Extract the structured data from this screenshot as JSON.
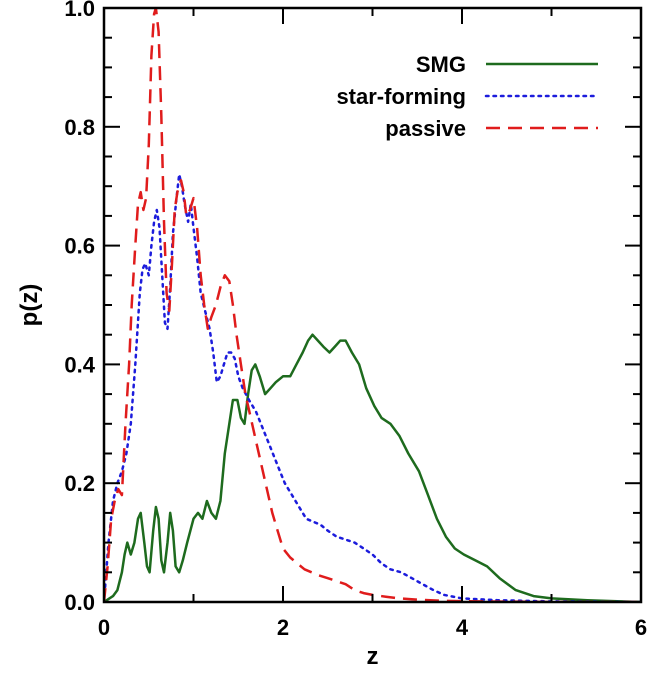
{
  "chart_data": {
    "type": "line",
    "xlabel": "z",
    "ylabel": "p(z)",
    "xlim": [
      0,
      6
    ],
    "ylim": [
      0,
      1.0
    ],
    "x_ticks": [
      {
        "value": 0,
        "label": "0"
      },
      {
        "value": 2,
        "label": "2"
      },
      {
        "value": 4,
        "label": "4"
      },
      {
        "value": 6,
        "label": "6"
      }
    ],
    "y_ticks": [
      {
        "value": 0.0,
        "label": "0.0"
      },
      {
        "value": 0.2,
        "label": "0.2"
      },
      {
        "value": 0.4,
        "label": "0.4"
      },
      {
        "value": 0.6,
        "label": "0.6"
      },
      {
        "value": 0.8,
        "label": "0.8"
      },
      {
        "value": 1.0,
        "label": "1.0"
      }
    ],
    "grid": false,
    "legend_position": "top-right",
    "series": [
      {
        "name": "SMG",
        "color": "#1e6b1e",
        "style": "solid",
        "points": [
          [
            0.0,
            0.0
          ],
          [
            0.1,
            0.01
          ],
          [
            0.15,
            0.02
          ],
          [
            0.2,
            0.05
          ],
          [
            0.23,
            0.08
          ],
          [
            0.26,
            0.1
          ],
          [
            0.3,
            0.08
          ],
          [
            0.34,
            0.1
          ],
          [
            0.38,
            0.14
          ],
          [
            0.41,
            0.15
          ],
          [
            0.45,
            0.1
          ],
          [
            0.48,
            0.06
          ],
          [
            0.51,
            0.05
          ],
          [
            0.55,
            0.12
          ],
          [
            0.58,
            0.16
          ],
          [
            0.61,
            0.14
          ],
          [
            0.64,
            0.07
          ],
          [
            0.67,
            0.05
          ],
          [
            0.71,
            0.1
          ],
          [
            0.74,
            0.15
          ],
          [
            0.77,
            0.12
          ],
          [
            0.8,
            0.06
          ],
          [
            0.84,
            0.05
          ],
          [
            0.88,
            0.07
          ],
          [
            0.93,
            0.1
          ],
          [
            1.0,
            0.14
          ],
          [
            1.05,
            0.15
          ],
          [
            1.1,
            0.14
          ],
          [
            1.15,
            0.17
          ],
          [
            1.2,
            0.15
          ],
          [
            1.25,
            0.14
          ],
          [
            1.3,
            0.17
          ],
          [
            1.35,
            0.25
          ],
          [
            1.4,
            0.3
          ],
          [
            1.44,
            0.34
          ],
          [
            1.49,
            0.34
          ],
          [
            1.53,
            0.31
          ],
          [
            1.57,
            0.3
          ],
          [
            1.61,
            0.35
          ],
          [
            1.65,
            0.39
          ],
          [
            1.69,
            0.4
          ],
          [
            1.74,
            0.38
          ],
          [
            1.8,
            0.35
          ],
          [
            1.86,
            0.36
          ],
          [
            1.92,
            0.37
          ],
          [
            2.0,
            0.38
          ],
          [
            2.08,
            0.38
          ],
          [
            2.15,
            0.4
          ],
          [
            2.22,
            0.42
          ],
          [
            2.28,
            0.44
          ],
          [
            2.33,
            0.45
          ],
          [
            2.39,
            0.44
          ],
          [
            2.45,
            0.43
          ],
          [
            2.52,
            0.42
          ],
          [
            2.58,
            0.43
          ],
          [
            2.64,
            0.44
          ],
          [
            2.7,
            0.44
          ],
          [
            2.77,
            0.42
          ],
          [
            2.85,
            0.4
          ],
          [
            2.93,
            0.36
          ],
          [
            3.02,
            0.33
          ],
          [
            3.1,
            0.31
          ],
          [
            3.2,
            0.3
          ],
          [
            3.3,
            0.28
          ],
          [
            3.4,
            0.25
          ],
          [
            3.52,
            0.22
          ],
          [
            3.62,
            0.18
          ],
          [
            3.72,
            0.14
          ],
          [
            3.82,
            0.11
          ],
          [
            3.92,
            0.09
          ],
          [
            4.02,
            0.08
          ],
          [
            4.15,
            0.07
          ],
          [
            4.28,
            0.06
          ],
          [
            4.42,
            0.04
          ],
          [
            4.6,
            0.02
          ],
          [
            4.8,
            0.01
          ],
          [
            5.0,
            0.006
          ],
          [
            5.4,
            0.003
          ],
          [
            6.0,
            0.0
          ]
        ]
      },
      {
        "name": "star-forming",
        "color": "#1c1cdc",
        "style": "dotted",
        "points": [
          [
            0.0,
            0.0
          ],
          [
            0.05,
            0.1
          ],
          [
            0.1,
            0.17
          ],
          [
            0.15,
            0.2
          ],
          [
            0.2,
            0.22
          ],
          [
            0.25,
            0.25
          ],
          [
            0.3,
            0.3
          ],
          [
            0.35,
            0.4
          ],
          [
            0.4,
            0.52
          ],
          [
            0.43,
            0.56
          ],
          [
            0.46,
            0.57
          ],
          [
            0.5,
            0.55
          ],
          [
            0.53,
            0.6
          ],
          [
            0.56,
            0.64
          ],
          [
            0.59,
            0.66
          ],
          [
            0.62,
            0.63
          ],
          [
            0.65,
            0.55
          ],
          [
            0.68,
            0.47
          ],
          [
            0.71,
            0.46
          ],
          [
            0.74,
            0.53
          ],
          [
            0.77,
            0.62
          ],
          [
            0.81,
            0.68
          ],
          [
            0.84,
            0.72
          ],
          [
            0.87,
            0.7
          ],
          [
            0.9,
            0.67
          ],
          [
            0.94,
            0.64
          ],
          [
            0.97,
            0.67
          ],
          [
            1.0,
            0.63
          ],
          [
            1.04,
            0.58
          ],
          [
            1.08,
            0.52
          ],
          [
            1.13,
            0.49
          ],
          [
            1.18,
            0.46
          ],
          [
            1.22,
            0.42
          ],
          [
            1.26,
            0.37
          ],
          [
            1.3,
            0.38
          ],
          [
            1.34,
            0.4
          ],
          [
            1.38,
            0.42
          ],
          [
            1.42,
            0.42
          ],
          [
            1.46,
            0.41
          ],
          [
            1.5,
            0.38
          ],
          [
            1.55,
            0.36
          ],
          [
            1.62,
            0.34
          ],
          [
            1.7,
            0.32
          ],
          [
            1.78,
            0.29
          ],
          [
            1.86,
            0.26
          ],
          [
            1.94,
            0.23
          ],
          [
            2.02,
            0.2
          ],
          [
            2.1,
            0.18
          ],
          [
            2.18,
            0.16
          ],
          [
            2.26,
            0.14
          ],
          [
            2.34,
            0.135
          ],
          [
            2.42,
            0.13
          ],
          [
            2.5,
            0.12
          ],
          [
            2.6,
            0.11
          ],
          [
            2.7,
            0.105
          ],
          [
            2.8,
            0.1
          ],
          [
            2.9,
            0.09
          ],
          [
            3.0,
            0.08
          ],
          [
            3.1,
            0.065
          ],
          [
            3.2,
            0.055
          ],
          [
            3.32,
            0.05
          ],
          [
            3.44,
            0.04
          ],
          [
            3.56,
            0.03
          ],
          [
            3.68,
            0.02
          ],
          [
            3.8,
            0.012
          ],
          [
            4.0,
            0.006
          ],
          [
            4.4,
            0.003
          ],
          [
            5.0,
            0.001
          ],
          [
            6.0,
            0.0
          ]
        ]
      },
      {
        "name": "passive",
        "color": "#e01c1c",
        "style": "dashed",
        "points": [
          [
            0.0,
            0.0
          ],
          [
            0.04,
            0.06
          ],
          [
            0.08,
            0.14
          ],
          [
            0.12,
            0.17
          ],
          [
            0.16,
            0.19
          ],
          [
            0.2,
            0.18
          ],
          [
            0.24,
            0.3
          ],
          [
            0.28,
            0.4
          ],
          [
            0.31,
            0.5
          ],
          [
            0.35,
            0.6
          ],
          [
            0.38,
            0.67
          ],
          [
            0.41,
            0.69
          ],
          [
            0.44,
            0.66
          ],
          [
            0.47,
            0.68
          ],
          [
            0.5,
            0.77
          ],
          [
            0.53,
            0.92
          ],
          [
            0.56,
            0.99
          ],
          [
            0.58,
            1.0
          ],
          [
            0.61,
            0.96
          ],
          [
            0.64,
            0.82
          ],
          [
            0.67,
            0.64
          ],
          [
            0.7,
            0.52
          ],
          [
            0.73,
            0.49
          ],
          [
            0.76,
            0.57
          ],
          [
            0.79,
            0.66
          ],
          [
            0.82,
            0.69
          ],
          [
            0.86,
            0.71
          ],
          [
            0.89,
            0.69
          ],
          [
            0.92,
            0.65
          ],
          [
            0.96,
            0.66
          ],
          [
            1.0,
            0.68
          ],
          [
            1.04,
            0.63
          ],
          [
            1.08,
            0.55
          ],
          [
            1.12,
            0.5
          ],
          [
            1.16,
            0.46
          ],
          [
            1.2,
            0.48
          ],
          [
            1.25,
            0.5
          ],
          [
            1.3,
            0.53
          ],
          [
            1.35,
            0.55
          ],
          [
            1.4,
            0.54
          ],
          [
            1.44,
            0.5
          ],
          [
            1.48,
            0.45
          ],
          [
            1.53,
            0.4
          ],
          [
            1.58,
            0.35
          ],
          [
            1.64,
            0.31
          ],
          [
            1.7,
            0.27
          ],
          [
            1.76,
            0.23
          ],
          [
            1.82,
            0.19
          ],
          [
            1.88,
            0.15
          ],
          [
            1.94,
            0.12
          ],
          [
            2.0,
            0.09
          ],
          [
            2.08,
            0.075
          ],
          [
            2.16,
            0.065
          ],
          [
            2.24,
            0.055
          ],
          [
            2.32,
            0.05
          ],
          [
            2.4,
            0.045
          ],
          [
            2.5,
            0.04
          ],
          [
            2.6,
            0.035
          ],
          [
            2.7,
            0.03
          ],
          [
            2.8,
            0.02
          ],
          [
            2.9,
            0.015
          ],
          [
            3.0,
            0.012
          ],
          [
            3.15,
            0.009
          ],
          [
            3.3,
            0.006
          ],
          [
            3.5,
            0.004
          ],
          [
            3.8,
            0.002
          ],
          [
            4.2,
            0.001
          ],
          [
            5.0,
            0.0
          ],
          [
            6.0,
            0.0
          ]
        ]
      }
    ]
  }
}
